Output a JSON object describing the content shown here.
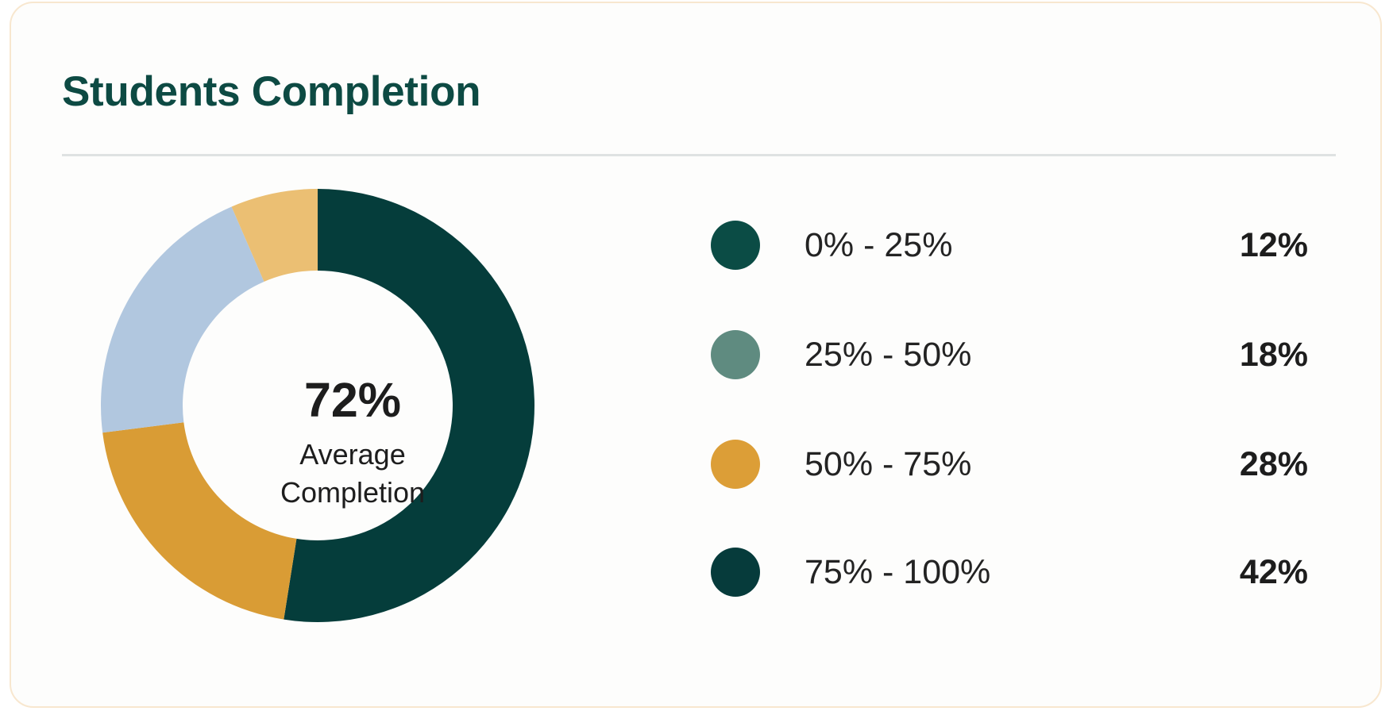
{
  "chart_data": {
    "type": "pie",
    "title": "Students Completion",
    "center": {
      "value": "72%",
      "label": "Average Completion"
    },
    "categories": [
      "0% - 25%",
      "25% - 50%",
      "50% - 75%",
      "75% - 100%"
    ],
    "values": [
      12,
      18,
      28,
      42
    ],
    "value_labels": [
      "12%",
      "18%",
      "28%",
      "42%"
    ],
    "legend_colors": [
      "#0b4c45",
      "#5f8b80",
      "#dc9e37",
      "#063b3b"
    ],
    "donut_segments": [
      {
        "value": 52.5,
        "color": "#053d3b"
      },
      {
        "value": 20.5,
        "color": "#d99c35"
      },
      {
        "value": 20.5,
        "color": "#b1c7df"
      },
      {
        "value": 6.5,
        "color": "#ebbf73"
      }
    ],
    "legend_position": "right"
  }
}
